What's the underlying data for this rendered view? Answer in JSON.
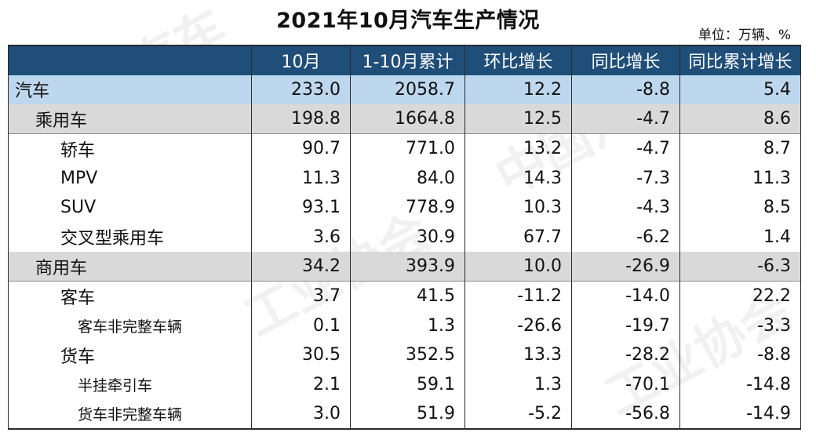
{
  "title": "2021年10月汽车生产情况",
  "unit": "单位：万辆、%",
  "headers": [
    "",
    "10月",
    "1-10月累计",
    "环比增长",
    "同比增长",
    "同比累计增长"
  ],
  "rows": [
    {
      "label": "汽车",
      "values": [
        "233.0",
        "2058.7",
        "12.2",
        "-8.8",
        "5.4"
      ]
    },
    {
      "label": "乘用车",
      "values": [
        "198.8",
        "1664.8",
        "12.5",
        "-4.7",
        "8.6"
      ]
    },
    {
      "label": "轿车",
      "values": [
        "90.7",
        "771.0",
        "13.2",
        "-4.7",
        "8.7"
      ]
    },
    {
      "label": "MPV",
      "values": [
        "11.3",
        "84.0",
        "14.3",
        "-7.3",
        "11.3"
      ]
    },
    {
      "label": "SUV",
      "values": [
        "93.1",
        "778.9",
        "10.3",
        "-4.3",
        "8.5"
      ]
    },
    {
      "label": "交叉型乘用车",
      "values": [
        "3.6",
        "30.9",
        "67.7",
        "-6.2",
        "1.4"
      ]
    },
    {
      "label": "商用车",
      "values": [
        "34.2",
        "393.9",
        "10.0",
        "-26.9",
        "-6.3"
      ]
    },
    {
      "label": "客车",
      "values": [
        "3.7",
        "41.5",
        "-11.2",
        "-14.0",
        "22.2"
      ]
    },
    {
      "label": "客车非完整车辆",
      "values": [
        "0.1",
        "1.3",
        "-26.6",
        "-19.7",
        "-3.3"
      ]
    },
    {
      "label": "货车",
      "values": [
        "30.5",
        "352.5",
        "13.3",
        "-28.2",
        "-8.8"
      ]
    },
    {
      "label": "半挂牵引车",
      "values": [
        "2.1",
        "59.1",
        "1.3",
        "-70.1",
        "-14.8"
      ]
    },
    {
      "label": "货车非完整车辆",
      "values": [
        "3.0",
        "51.9",
        "-5.2",
        "-56.8",
        "-14.9"
      ]
    }
  ]
}
